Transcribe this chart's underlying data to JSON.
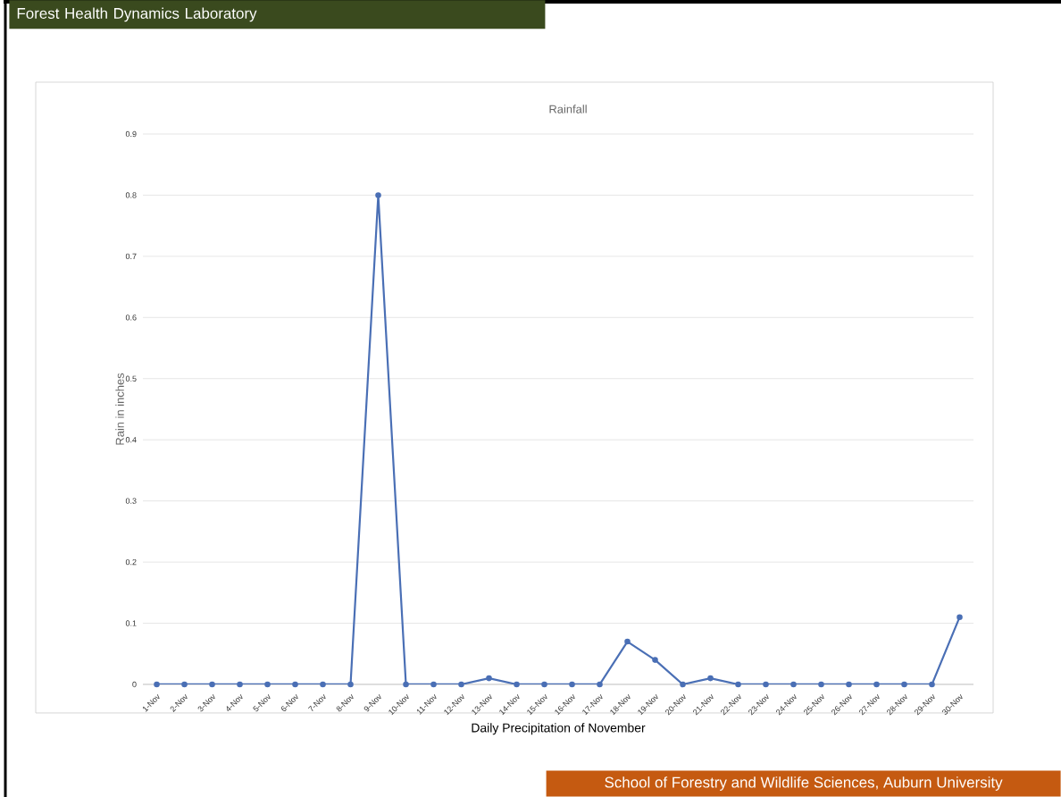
{
  "chart_data": {
    "type": "line",
    "title": "Rainfall",
    "xlabel": "Daily Precipitation of November",
    "ylabel": "Rain in inches",
    "annotations": [
      "Forest Health Dynamics Laboratory",
      "School of Forestry and Wildlife Sciences, Auburn University"
    ],
    "categories": [
      "1-Nov",
      "2-Nov",
      "3-Nov",
      "4-Nov",
      "5-Nov",
      "6-Nov",
      "7-Nov",
      "8-Nov",
      "9-Nov",
      "10-Nov",
      "11-Nov",
      "12-Nov",
      "13-Nov",
      "14-Nov",
      "15-Nov",
      "16-Nov",
      "17-Nov",
      "18-Nov",
      "19-Nov",
      "20-Nov",
      "21-Nov",
      "22-Nov",
      "23-Nov",
      "24-Nov",
      "25-Nov",
      "26-Nov",
      "27-Nov",
      "28-Nov",
      "29-Nov",
      "30-Nov"
    ],
    "values": [
      0,
      0,
      0,
      0,
      0,
      0,
      0,
      0,
      0.8,
      0,
      0,
      0,
      0.01,
      0,
      0,
      0,
      0,
      0.07,
      0.04,
      0,
      0.01,
      0,
      0,
      0,
      0,
      0,
      0,
      0,
      0,
      0.11
    ],
    "color": "#4a6fb5",
    "ylim": [
      0,
      0.9
    ],
    "yticks": [
      0,
      0.1,
      0.2,
      0.3,
      0.4,
      0.5,
      0.6,
      0.7,
      0.8,
      0.9
    ],
    "grid": "y",
    "marker": "circle",
    "line_style": "solid"
  }
}
